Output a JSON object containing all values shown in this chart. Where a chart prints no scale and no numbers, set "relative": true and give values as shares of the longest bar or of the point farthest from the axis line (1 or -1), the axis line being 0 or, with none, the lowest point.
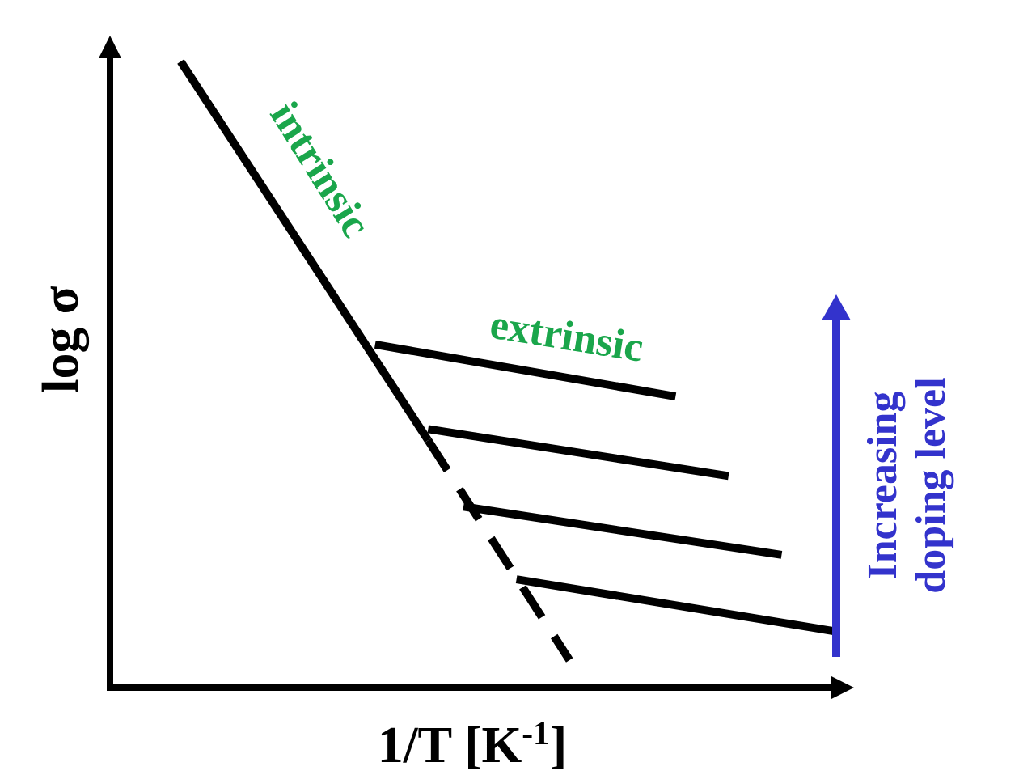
{
  "chart_data": {
    "type": "line",
    "relative": true,
    "xlabel": "1/T [K$^{-1}$]",
    "ylabel": "log σ",
    "marker": "none",
    "categories": [
      null,
      null,
      null,
      null,
      null,
      null,
      null,
      null,
      null,
      null,
      null,
      null,
      null,
      null,
      null,
      null,
      null,
      null,
      null,
      null,
      null,
      null,
      null,
      null,
      null,
      null,
      null,
      null,
      null,
      null,
      null,
      null,
      null,
      null,
      null,
      null,
      null,
      null,
      null,
      null,
      null,
      null
    ],
    "series": [
      {
        "color": "#000000",
        "line_style": "solid",
        "values": [
          null,
          null,
          null,
          null,
          1.0,
          null,
          null,
          null,
          null,
          null,
          null,
          null,
          null,
          null,
          null,
          null,
          null,
          null,
          0.395,
          null,
          null,
          null,
          null,
          null,
          null,
          null,
          null,
          null,
          null,
          null,
          null,
          null,
          null,
          null,
          null,
          null,
          null,
          null,
          null,
          null,
          null,
          null
        ]
      },
      {
        "color": "#000000",
        "line_style": "dashed",
        "values": [
          null,
          null,
          null,
          null,
          null,
          null,
          null,
          null,
          null,
          null,
          null,
          null,
          null,
          null,
          null,
          null,
          null,
          null,
          0.395,
          null,
          null,
          null,
          null,
          null,
          null,
          null,
          0.044,
          null,
          null,
          null,
          null,
          null,
          null,
          null,
          null,
          null,
          null,
          null,
          null,
          null,
          null,
          null
        ]
      },
      {
        "color": "#000000",
        "line_style": "solid",
        "values": [
          null,
          null,
          null,
          null,
          null,
          null,
          null,
          null,
          null,
          null,
          null,
          null,
          null,
          null,
          null,
          0.548,
          null,
          null,
          null,
          null,
          null,
          null,
          null,
          null,
          null,
          null,
          null,
          null,
          null,
          null,
          null,
          null,
          0.465,
          null,
          null,
          null,
          null,
          null,
          null,
          null,
          null,
          null
        ]
      },
      {
        "color": "#000000",
        "line_style": "solid",
        "values": [
          null,
          null,
          null,
          null,
          null,
          null,
          null,
          null,
          null,
          null,
          null,
          null,
          null,
          null,
          null,
          null,
          null,
          null,
          0.413,
          null,
          null,
          null,
          null,
          null,
          null,
          null,
          null,
          null,
          null,
          null,
          null,
          null,
          null,
          null,
          null,
          0.338,
          null,
          null,
          null,
          null,
          null,
          null
        ]
      },
      {
        "color": "#000000",
        "line_style": "solid",
        "values": [
          null,
          null,
          null,
          null,
          null,
          null,
          null,
          null,
          null,
          null,
          null,
          null,
          null,
          null,
          null,
          null,
          null,
          null,
          null,
          null,
          0.289,
          null,
          null,
          null,
          null,
          null,
          null,
          null,
          null,
          null,
          null,
          null,
          null,
          null,
          null,
          null,
          null,
          null,
          0.212,
          null,
          null,
          null
        ]
      },
      {
        "color": "#000000",
        "line_style": "solid",
        "values": [
          null,
          null,
          null,
          null,
          null,
          null,
          null,
          null,
          null,
          null,
          null,
          null,
          null,
          null,
          null,
          null,
          null,
          null,
          null,
          null,
          null,
          null,
          null,
          0.173,
          null,
          null,
          null,
          null,
          null,
          null,
          null,
          null,
          null,
          null,
          null,
          null,
          null,
          null,
          null,
          null,
          null,
          0.09
        ]
      }
    ],
    "annotations": [
      "intrinsic",
      "extrinsic",
      "Increasing doping level"
    ]
  }
}
